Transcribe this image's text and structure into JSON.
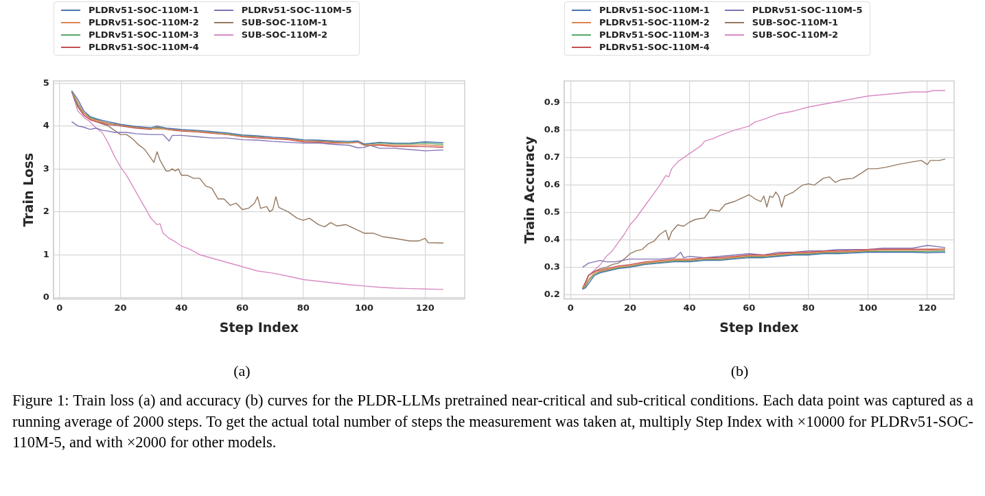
{
  "chart_data": [
    {
      "type": "line",
      "xlabel": "Step Index",
      "ylabel": "Train Loss",
      "xlim": [
        -2,
        133
      ],
      "ylim": [
        -0.03,
        5.05
      ],
      "xticks": [
        0,
        20,
        40,
        60,
        80,
        100,
        120
      ],
      "yticks": [
        0,
        1,
        2,
        3,
        4,
        5
      ],
      "grid": true,
      "legend": "top",
      "annotations": [
        "(a)",
        "Figure 1: Train loss (a) and accuracy (b) curves for the PLDR-LLMs pretrained near-critical and sub-critical conditions. Each data point was captured as a running average of 2000 steps. To get the actual total number of steps the measurement was taken at, multiply Step Index with ×10000 for PLDRv51-SOC-110M-5, and with ×2000 for other models."
      ],
      "x": [
        4,
        6,
        8,
        10,
        12,
        14,
        16,
        18,
        20,
        25,
        30,
        32,
        35,
        40,
        45,
        50,
        55,
        60,
        65,
        70,
        75,
        80,
        85,
        90,
        95,
        98,
        100,
        105,
        110,
        115,
        120,
        126
      ],
      "series": [
        {
          "name": "PLDRv51-SOC-110M-1",
          "color": "#4c72b0",
          "values": [
            4.82,
            4.62,
            4.35,
            4.22,
            4.17,
            4.13,
            4.1,
            4.07,
            4.04,
            3.99,
            3.96,
            4.0,
            3.95,
            3.92,
            3.9,
            3.87,
            3.84,
            3.79,
            3.77,
            3.74,
            3.72,
            3.68,
            3.67,
            3.65,
            3.64,
            3.65,
            3.58,
            3.62,
            3.6,
            3.6,
            3.63,
            3.61
          ]
        },
        {
          "name": "PLDRv51-SOC-110M-2",
          "color": "#dd8452",
          "values": [
            4.8,
            4.55,
            4.3,
            4.18,
            4.13,
            4.1,
            4.06,
            4.05,
            4.03,
            3.97,
            3.94,
            3.93,
            3.93,
            3.9,
            3.87,
            3.84,
            3.8,
            3.76,
            3.74,
            3.72,
            3.7,
            3.65,
            3.64,
            3.62,
            3.6,
            3.63,
            3.55,
            3.57,
            3.55,
            3.55,
            3.56,
            3.53
          ]
        },
        {
          "name": "PLDRv51-SOC-110M-3",
          "color": "#55a868",
          "values": [
            4.8,
            4.5,
            4.3,
            4.2,
            4.15,
            4.1,
            4.07,
            4.04,
            4.02,
            3.97,
            3.94,
            3.96,
            3.93,
            3.9,
            3.88,
            3.85,
            3.82,
            3.77,
            3.75,
            3.72,
            3.71,
            3.66,
            3.65,
            3.63,
            3.62,
            3.64,
            3.57,
            3.6,
            3.58,
            3.58,
            3.6,
            3.57
          ]
        },
        {
          "name": "PLDRv51-SOC-110M-4",
          "color": "#c44e52",
          "values": [
            4.8,
            4.45,
            4.25,
            4.15,
            4.1,
            4.07,
            4.03,
            4.02,
            4.0,
            3.95,
            3.92,
            3.98,
            3.92,
            3.88,
            3.86,
            3.83,
            3.8,
            3.75,
            3.72,
            3.7,
            3.68,
            3.63,
            3.62,
            3.6,
            3.6,
            3.62,
            3.55,
            3.55,
            3.52,
            3.52,
            3.52,
            3.5
          ]
        },
        {
          "name": "PLDRv51-SOC-110M-5",
          "color": "#8172b3",
          "x": [
            4,
            6,
            8,
            10,
            12,
            14,
            16,
            18,
            20,
            22,
            25,
            30,
            34,
            36,
            37,
            40,
            45,
            50,
            55,
            60,
            65,
            70,
            75,
            80,
            85,
            90,
            95,
            98,
            100,
            102,
            105,
            110,
            115,
            120,
            126
          ],
          "values": [
            4.1,
            4.0,
            3.97,
            3.92,
            3.95,
            3.9,
            3.88,
            3.85,
            3.85,
            3.85,
            3.82,
            3.8,
            3.8,
            3.65,
            3.78,
            3.78,
            3.75,
            3.72,
            3.72,
            3.68,
            3.67,
            3.64,
            3.62,
            3.6,
            3.6,
            3.57,
            3.55,
            3.49,
            3.5,
            3.55,
            3.48,
            3.48,
            3.45,
            3.42,
            3.44
          ]
        },
        {
          "name": "SUB-SOC-110M-1",
          "color": "#937860",
          "x": [
            4,
            6,
            8,
            10,
            12,
            14,
            16,
            18,
            20,
            22,
            24,
            26,
            28,
            30,
            31,
            32,
            33,
            35,
            36,
            37,
            38,
            39,
            40,
            42,
            44,
            46,
            48,
            50,
            52,
            54,
            56,
            58,
            60,
            62,
            64,
            65,
            66,
            68,
            69,
            70,
            71,
            72,
            75,
            78,
            80,
            82,
            85,
            87,
            89,
            91,
            94,
            97,
            100,
            103,
            106,
            110,
            115,
            118,
            120,
            121,
            126
          ],
          "values": [
            4.82,
            4.45,
            4.25,
            4.15,
            4.1,
            4.05,
            4.0,
            3.9,
            3.8,
            3.8,
            3.7,
            3.56,
            3.45,
            3.25,
            3.15,
            3.4,
            3.2,
            2.95,
            2.95,
            3.0,
            2.95,
            3.0,
            2.85,
            2.85,
            2.78,
            2.78,
            2.6,
            2.55,
            2.3,
            2.3,
            2.15,
            2.2,
            2.05,
            2.08,
            2.2,
            2.35,
            2.08,
            2.12,
            2.0,
            2.05,
            2.35,
            2.1,
            2.0,
            1.85,
            1.8,
            1.85,
            1.7,
            1.65,
            1.75,
            1.67,
            1.7,
            1.6,
            1.5,
            1.5,
            1.42,
            1.38,
            1.32,
            1.32,
            1.38,
            1.28,
            1.27
          ]
        },
        {
          "name": "SUB-SOC-110M-2",
          "color": "#da8bc3",
          "x": [
            4,
            6,
            8,
            10,
            12,
            14,
            16,
            18,
            20,
            22,
            24,
            26,
            28,
            30,
            32,
            33,
            34,
            36,
            38,
            40,
            42,
            44,
            46,
            50,
            55,
            60,
            65,
            70,
            75,
            80,
            85,
            90,
            95,
            100,
            105,
            110,
            115,
            120,
            126
          ],
          "values": [
            4.8,
            4.35,
            4.2,
            4.1,
            3.95,
            3.85,
            3.6,
            3.3,
            3.05,
            2.85,
            2.6,
            2.35,
            2.1,
            1.85,
            1.7,
            1.72,
            1.5,
            1.38,
            1.3,
            1.2,
            1.15,
            1.08,
            1.0,
            0.92,
            0.82,
            0.72,
            0.62,
            0.57,
            0.5,
            0.42,
            0.38,
            0.34,
            0.3,
            0.27,
            0.24,
            0.22,
            0.21,
            0.2,
            0.19
          ]
        }
      ]
    },
    {
      "type": "line",
      "xlabel": "Step Index",
      "ylabel": "Train Accuracy",
      "xlim": [
        -2.2,
        129
      ],
      "ylim": [
        0.185,
        0.98
      ],
      "xticks": [
        0,
        20,
        40,
        60,
        80,
        100,
        120
      ],
      "yticks": [
        0.2,
        0.3,
        0.4,
        0.5,
        0.6,
        0.7,
        0.8,
        0.9
      ],
      "grid": true,
      "legend": "top",
      "annotations": [
        "(b)"
      ],
      "x": [
        4,
        5,
        6,
        8,
        10,
        12,
        14,
        16,
        20,
        25,
        30,
        35,
        40,
        45,
        50,
        55,
        60,
        65,
        70,
        75,
        80,
        85,
        90,
        95,
        100,
        105,
        110,
        115,
        120,
        126
      ],
      "series": [
        {
          "name": "PLDRv51-SOC-110M-1",
          "color": "#4c72b0",
          "values": [
            0.22,
            0.225,
            0.24,
            0.27,
            0.28,
            0.285,
            0.29,
            0.295,
            0.3,
            0.31,
            0.315,
            0.32,
            0.32,
            0.325,
            0.325,
            0.33,
            0.335,
            0.335,
            0.34,
            0.345,
            0.345,
            0.35,
            0.35,
            0.352,
            0.355,
            0.355,
            0.355,
            0.355,
            0.353,
            0.355
          ]
        },
        {
          "name": "PLDRv51-SOC-110M-2",
          "color": "#dd8452",
          "values": [
            0.225,
            0.235,
            0.255,
            0.28,
            0.286,
            0.291,
            0.296,
            0.301,
            0.306,
            0.316,
            0.321,
            0.326,
            0.326,
            0.331,
            0.331,
            0.336,
            0.341,
            0.341,
            0.346,
            0.351,
            0.351,
            0.356,
            0.356,
            0.358,
            0.361,
            0.362,
            0.362,
            0.362,
            0.362,
            0.365
          ]
        },
        {
          "name": "PLDRv51-SOC-110M-3",
          "color": "#55a868",
          "values": [
            0.222,
            0.23,
            0.25,
            0.275,
            0.283,
            0.288,
            0.293,
            0.298,
            0.303,
            0.313,
            0.318,
            0.323,
            0.323,
            0.328,
            0.328,
            0.333,
            0.338,
            0.338,
            0.343,
            0.348,
            0.348,
            0.353,
            0.353,
            0.355,
            0.358,
            0.358,
            0.358,
            0.358,
            0.358,
            0.36
          ]
        },
        {
          "name": "PLDRv51-SOC-110M-4",
          "color": "#c44e52",
          "values": [
            0.225,
            0.245,
            0.27,
            0.285,
            0.29,
            0.295,
            0.3,
            0.305,
            0.31,
            0.32,
            0.325,
            0.33,
            0.33,
            0.335,
            0.335,
            0.34,
            0.345,
            0.345,
            0.35,
            0.355,
            0.355,
            0.36,
            0.36,
            0.362,
            0.365,
            0.366,
            0.366,
            0.366,
            0.366,
            0.367
          ]
        },
        {
          "name": "PLDRv51-SOC-110M-5",
          "color": "#8172b3",
          "x": [
            4,
            6,
            8,
            10,
            12,
            15,
            20,
            25,
            30,
            35,
            37,
            38,
            40,
            45,
            50,
            55,
            60,
            65,
            70,
            75,
            80,
            85,
            90,
            95,
            100,
            105,
            110,
            115,
            120,
            126
          ],
          "values": [
            0.3,
            0.315,
            0.32,
            0.325,
            0.32,
            0.32,
            0.33,
            0.33,
            0.33,
            0.335,
            0.355,
            0.335,
            0.34,
            0.335,
            0.34,
            0.345,
            0.35,
            0.345,
            0.355,
            0.355,
            0.36,
            0.36,
            0.365,
            0.365,
            0.365,
            0.37,
            0.37,
            0.37,
            0.38,
            0.372
          ]
        },
        {
          "name": "SUB-SOC-110M-1",
          "color": "#937860",
          "x": [
            4,
            6,
            8,
            10,
            12,
            14,
            16,
            18,
            20,
            22,
            24,
            26,
            28,
            30,
            32,
            33,
            34,
            36,
            38,
            40,
            42,
            45,
            47,
            50,
            52,
            55,
            58,
            60,
            62,
            64,
            65,
            66,
            67,
            68,
            69,
            70,
            71,
            72,
            75,
            78,
            80,
            82,
            85,
            87,
            89,
            91,
            95,
            98,
            100,
            103,
            106,
            110,
            115,
            118,
            120,
            121,
            124,
            126
          ],
          "values": [
            0.22,
            0.27,
            0.285,
            0.295,
            0.3,
            0.31,
            0.315,
            0.33,
            0.35,
            0.36,
            0.365,
            0.385,
            0.395,
            0.42,
            0.435,
            0.4,
            0.43,
            0.455,
            0.45,
            0.465,
            0.475,
            0.48,
            0.51,
            0.505,
            0.53,
            0.54,
            0.555,
            0.565,
            0.55,
            0.54,
            0.56,
            0.52,
            0.56,
            0.555,
            0.575,
            0.56,
            0.52,
            0.56,
            0.575,
            0.6,
            0.605,
            0.6,
            0.625,
            0.63,
            0.61,
            0.62,
            0.625,
            0.645,
            0.66,
            0.66,
            0.665,
            0.675,
            0.685,
            0.69,
            0.675,
            0.69,
            0.69,
            0.695
          ]
        },
        {
          "name": "SUB-SOC-110M-2",
          "color": "#da8bc3",
          "x": [
            4,
            6,
            8,
            10,
            12,
            14,
            16,
            18,
            20,
            22,
            24,
            26,
            28,
            30,
            32,
            33,
            34,
            36,
            38,
            40,
            42,
            44,
            45,
            48,
            50,
            55,
            60,
            62,
            65,
            70,
            75,
            80,
            85,
            90,
            95,
            100,
            105,
            110,
            115,
            120,
            122,
            126
          ],
          "values": [
            0.22,
            0.27,
            0.29,
            0.31,
            0.34,
            0.36,
            0.39,
            0.42,
            0.455,
            0.48,
            0.51,
            0.54,
            0.57,
            0.6,
            0.635,
            0.63,
            0.66,
            0.685,
            0.7,
            0.715,
            0.73,
            0.745,
            0.76,
            0.77,
            0.78,
            0.8,
            0.815,
            0.83,
            0.84,
            0.86,
            0.87,
            0.885,
            0.895,
            0.905,
            0.915,
            0.925,
            0.93,
            0.935,
            0.94,
            0.94,
            0.945,
            0.945
          ]
        }
      ]
    }
  ]
}
